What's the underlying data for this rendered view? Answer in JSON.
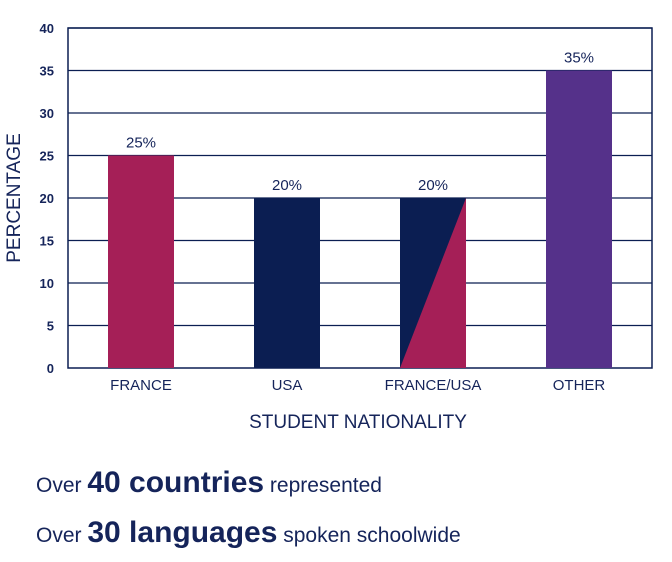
{
  "chart_data": {
    "type": "bar",
    "categories": [
      "FRANCE",
      "USA",
      "FRANCE/USA",
      "OTHER"
    ],
    "values": [
      25,
      20,
      20,
      35
    ],
    "data_labels": [
      "25%",
      "20%",
      "20%",
      "35%"
    ],
    "bar_colors": [
      "#a51f57",
      "#0b1e52",
      "split:#0b1e52/#a51f57",
      "#55318a"
    ],
    "title": "",
    "xlabel": "STUDENT NATIONALITY",
    "ylabel": "PERCENTAGE",
    "ylim": [
      0,
      40
    ],
    "yticks": [
      0,
      5,
      10,
      15,
      20,
      25,
      30,
      35,
      40
    ],
    "grid": true,
    "legend": "none"
  },
  "facts": [
    {
      "pre": "Over ",
      "bold": "40 countries",
      "post": " represented"
    },
    {
      "pre": "Over ",
      "bold": "30 languages",
      "post": " spoken schoolwide"
    }
  ],
  "colors": {
    "text": "#15245a",
    "grid": "#0b1e52",
    "france": "#a51f57",
    "usa": "#0b1e52",
    "other": "#55318a"
  }
}
